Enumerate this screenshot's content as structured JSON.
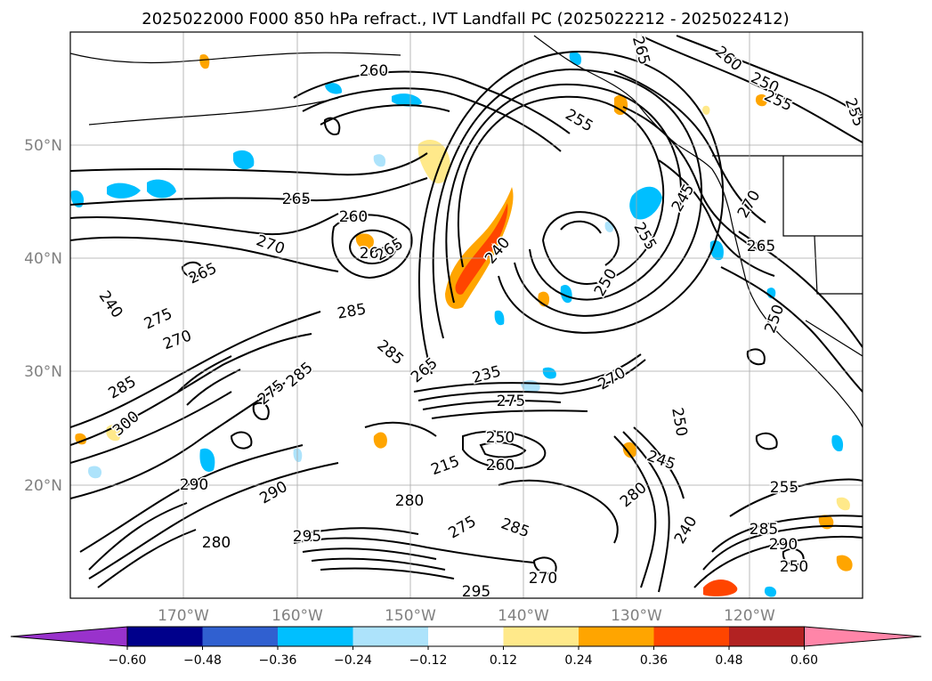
{
  "title": "2025022000 F000 850 hPa refract., IVT Landfall PC (2025022212 - 2025022412)",
  "lon_labels": [
    "170°W",
    "160°W",
    "150°W",
    "140°W",
    "130°W",
    "120°W"
  ],
  "lat_labels": [
    "20°N",
    "30°N",
    "40°N",
    "50°N"
  ],
  "contour_labels": [
    "260",
    "265",
    "255",
    "260",
    "250",
    "255",
    "255",
    "265",
    "260",
    "270",
    "260",
    "265",
    "240",
    "255",
    "245",
    "270",
    "265",
    "265",
    "275",
    "285",
    "270",
    "240",
    "250",
    "250",
    "285",
    "285",
    "275",
    "265",
    "235",
    "270",
    "275",
    "250",
    "285",
    "250",
    "300",
    "260",
    "215",
    "245",
    "280",
    "290",
    "280",
    "285",
    "290",
    "295",
    "280",
    "275",
    "285",
    "255",
    "240",
    "290",
    "250",
    "295",
    "270"
  ],
  "colorbar": {
    "ticks": [
      "−0.60",
      "−0.48",
      "−0.36",
      "−0.24",
      "−0.12",
      "0.12",
      "0.24",
      "0.36",
      "0.48",
      "0.60"
    ],
    "colors": [
      "#9932cc",
      "#00008b",
      "#3060d0",
      "#00bfff",
      "#ade3fb",
      "#ffffff",
      "#ffe98a",
      "#ffa500",
      "#ff4500",
      "#b22222",
      "#ff85a8"
    ]
  }
}
